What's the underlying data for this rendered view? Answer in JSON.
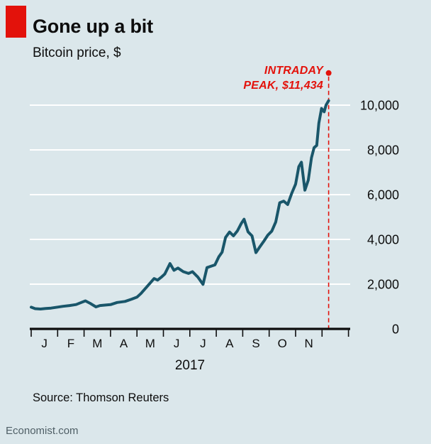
{
  "header": {
    "title": "Gone up a bit",
    "subtitle": "Bitcoin price, $"
  },
  "annotation": {
    "line1": "INTRADAY",
    "line2": "PEAK, $11,434"
  },
  "source": "Source: Thomson Reuters",
  "footer": "Economist.com",
  "colors": {
    "background": "#dbe7eb",
    "line": "#19566a",
    "accent_red": "#e3120b",
    "grid": "#ffffff",
    "axis": "#0d0d0d"
  },
  "chart_data": {
    "type": "line",
    "title": "Gone up a bit",
    "subtitle": "Bitcoin price, $",
    "x_unit": "months of 2017, J = January through N = November",
    "x_tick_labels": [
      "J",
      "F",
      "M",
      "A",
      "M",
      "J",
      "J",
      "A",
      "S",
      "O",
      "N"
    ],
    "x_axis_label": "2017",
    "y_ticks": [
      0,
      2000,
      4000,
      6000,
      8000,
      10000
    ],
    "y_tick_labels": [
      "0",
      "2,000",
      "4,000",
      "6,000",
      "8,000",
      "10,000"
    ],
    "ylim": [
      0,
      11500
    ],
    "grid": "horizontal-white",
    "legend": "none",
    "annotation": {
      "text": "INTRADAY PEAK, $11,434",
      "value": 11434,
      "x_month": 11.25,
      "style": "red dashed vertical line with dot at peak"
    },
    "series": [
      {
        "name": "Bitcoin price, $",
        "points": [
          [
            0.0,
            970
          ],
          [
            0.15,
            905
          ],
          [
            0.35,
            890
          ],
          [
            0.55,
            915
          ],
          [
            0.75,
            930
          ],
          [
            1.0,
            975
          ],
          [
            1.2,
            1010
          ],
          [
            1.45,
            1045
          ],
          [
            1.7,
            1090
          ],
          [
            1.9,
            1185
          ],
          [
            2.05,
            1255
          ],
          [
            2.25,
            1130
          ],
          [
            2.45,
            985
          ],
          [
            2.6,
            1045
          ],
          [
            2.85,
            1070
          ],
          [
            3.0,
            1085
          ],
          [
            3.25,
            1180
          ],
          [
            3.55,
            1230
          ],
          [
            3.8,
            1330
          ],
          [
            4.0,
            1420
          ],
          [
            4.15,
            1580
          ],
          [
            4.35,
            1850
          ],
          [
            4.5,
            2050
          ],
          [
            4.65,
            2250
          ],
          [
            4.78,
            2180
          ],
          [
            4.92,
            2310
          ],
          [
            5.05,
            2450
          ],
          [
            5.25,
            2920
          ],
          [
            5.4,
            2620
          ],
          [
            5.55,
            2720
          ],
          [
            5.75,
            2560
          ],
          [
            5.95,
            2480
          ],
          [
            6.1,
            2560
          ],
          [
            6.3,
            2320
          ],
          [
            6.5,
            1990
          ],
          [
            6.65,
            2740
          ],
          [
            6.82,
            2810
          ],
          [
            6.95,
            2860
          ],
          [
            7.1,
            3230
          ],
          [
            7.22,
            3430
          ],
          [
            7.35,
            4090
          ],
          [
            7.5,
            4330
          ],
          [
            7.65,
            4160
          ],
          [
            7.8,
            4380
          ],
          [
            7.95,
            4720
          ],
          [
            8.05,
            4900
          ],
          [
            8.2,
            4340
          ],
          [
            8.35,
            4160
          ],
          [
            8.5,
            3410
          ],
          [
            8.65,
            3670
          ],
          [
            8.8,
            3920
          ],
          [
            8.95,
            4190
          ],
          [
            9.1,
            4370
          ],
          [
            9.25,
            4780
          ],
          [
            9.4,
            5640
          ],
          [
            9.55,
            5710
          ],
          [
            9.7,
            5560
          ],
          [
            9.85,
            6050
          ],
          [
            10.0,
            6470
          ],
          [
            10.12,
            7250
          ],
          [
            10.22,
            7450
          ],
          [
            10.35,
            6200
          ],
          [
            10.48,
            6650
          ],
          [
            10.6,
            7650
          ],
          [
            10.7,
            8100
          ],
          [
            10.8,
            8200
          ],
          [
            10.88,
            9200
          ],
          [
            10.98,
            9850
          ],
          [
            11.08,
            9700
          ],
          [
            11.15,
            10000
          ],
          [
            11.25,
            10200
          ]
        ]
      }
    ]
  }
}
